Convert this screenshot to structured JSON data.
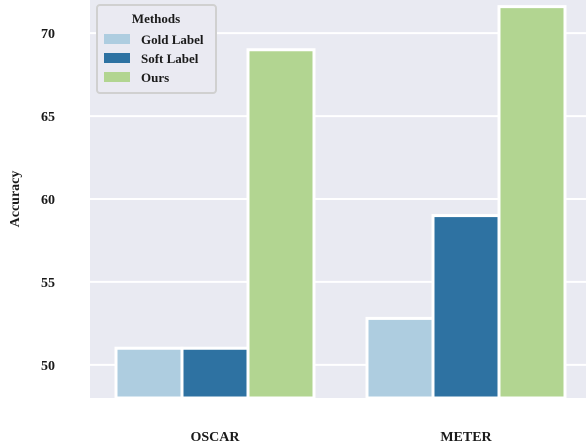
{
  "chart_data": {
    "type": "bar",
    "title": "",
    "xlabel": "",
    "ylabel": "Accuracy",
    "categories": [
      "OSCAR",
      "METER"
    ],
    "series": [
      {
        "name": "Gold Label",
        "values": [
          51.0,
          52.8
        ],
        "color": "#aecde0"
      },
      {
        "name": "Soft Label",
        "values": [
          51.0,
          59.0
        ],
        "color": "#2e72a2"
      },
      {
        "name": "Ours",
        "values": [
          69.0,
          71.6
        ],
        "color": "#b2d591"
      }
    ],
    "ylim": [
      48.0,
      72.0
    ],
    "yticks": [
      50,
      55,
      60,
      65,
      70
    ],
    "grid": true,
    "background": "#e9eaf2",
    "legend": {
      "title": "Methods",
      "placement": "top-left"
    }
  }
}
